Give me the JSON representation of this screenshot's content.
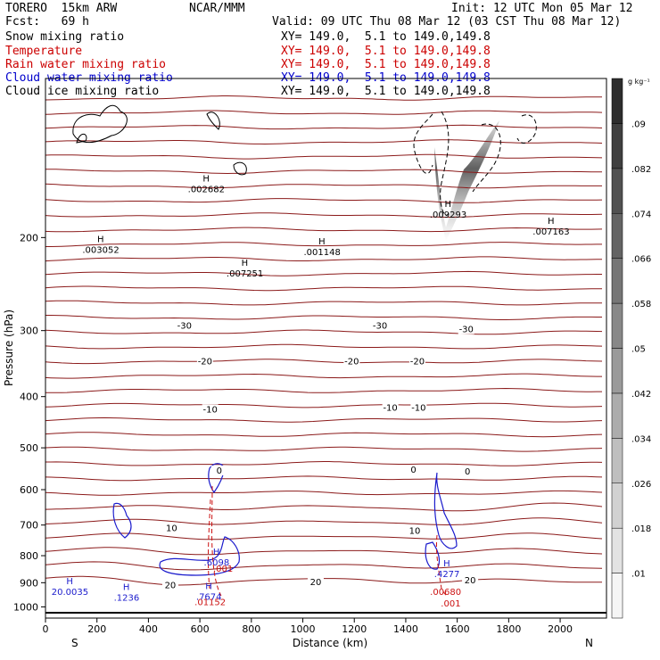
{
  "header": {
    "model": "TORERO  15km ARW",
    "center": "NCAR/MMM",
    "init": "Init: 12 UTC Mon 05 Mar 12",
    "fcst": "Fcst:   69 h",
    "valid": "Valid: 09 UTC Thu 08 Mar 12 (03 CST Thu 08 Mar 12)",
    "fields": [
      {
        "name": "Snow mixing ratio",
        "xy": "",
        "color": "#000000"
      },
      {
        "name": "Temperature",
        "xy": "XY= 149.0,  5.1 to 149.0,149.8",
        "color": "#cc0000"
      },
      {
        "name": "Rain water mixing ratio",
        "xy": "XY= 149.0,  5.1 to 149.0,149.8",
        "color": "#cc0000"
      },
      {
        "name": "Cloud water mixing ratio",
        "xy": "XY= 149.0,  5.1 to 149.0,149.8",
        "color": "#0000cc"
      },
      {
        "name": "Cloud ice mixing ratio",
        "xy": "XY= 149.0,  5.1 to 149.0,149.8",
        "color": "#000000"
      }
    ],
    "xy_snow": "XY= 149.0,  5.1 to 149.0,149.8"
  },
  "chart_data": {
    "type": "contour",
    "xlabel": "Distance (km)",
    "ylabel": "Pressure (hPa)",
    "x_ticks": [
      0,
      200,
      400,
      600,
      800,
      1000,
      1200,
      1400,
      1600,
      1800,
      2000
    ],
    "y_ticks": [
      200,
      300,
      400,
      500,
      600,
      700,
      800,
      900,
      1000
    ],
    "xlim": [
      0,
      2180
    ],
    "ylim": [
      1050,
      100
    ],
    "y_scale": "log",
    "endpoints": {
      "left": "S",
      "right": "N"
    },
    "colorbar": {
      "unit": "g kg⁻¹",
      "levels": [
        ".01",
        ".018",
        ".026",
        ".034",
        ".042",
        ".05",
        ".058",
        ".066",
        ".074",
        ".082",
        ".09"
      ]
    },
    "temperature_labels": [
      {
        "text": "-30",
        "x": 540,
        "p": 295
      },
      {
        "text": "-30",
        "x": 1300,
        "p": 295
      },
      {
        "text": "-30",
        "x": 1635,
        "p": 300
      },
      {
        "text": "-20",
        "x": 620,
        "p": 345
      },
      {
        "text": "-20",
        "x": 1190,
        "p": 345
      },
      {
        "text": "-20",
        "x": 1445,
        "p": 345
      },
      {
        "text": "-10",
        "x": 640,
        "p": 425
      },
      {
        "text": "-10",
        "x": 1340,
        "p": 422
      },
      {
        "text": "-10",
        "x": 1450,
        "p": 422
      },
      {
        "text": "0",
        "x": 675,
        "p": 555
      },
      {
        "text": "0",
        "x": 1430,
        "p": 553
      },
      {
        "text": "0",
        "x": 1640,
        "p": 557
      },
      {
        "text": "10",
        "x": 490,
        "p": 713
      },
      {
        "text": "10",
        "x": 1435,
        "p": 721
      },
      {
        "text": "20",
        "x": 1050,
        "p": 902
      },
      {
        "text": "20",
        "x": 485,
        "p": 915
      },
      {
        "text": "20",
        "x": 1650,
        "p": 895
      }
    ],
    "snow_maxima": [
      {
        "text": ".003052",
        "x": 215,
        "p": 212
      },
      {
        "text": ".002682",
        "x": 625,
        "p": 163
      },
      {
        "text": ".007251",
        "x": 775,
        "p": 235
      },
      {
        "text": ".001148",
        "x": 1075,
        "p": 214
      },
      {
        "text": ".009293",
        "x": 1565,
        "p": 182
      },
      {
        "text": ".007163",
        "x": 1965,
        "p": 196
      }
    ],
    "cloud_water_maxima": [
      {
        "text": ".1236",
        "x": 315,
        "p": 965
      },
      {
        "text": ".7674",
        "x": 635,
        "p": 963
      },
      {
        "text": ".6098",
        "x": 665,
        "p": 828
      },
      {
        "text": ".4277",
        "x": 1560,
        "p": 872
      },
      {
        "text": "20.0035",
        "x": 95,
        "p": 942
      }
    ],
    "rain_maxima": [
      {
        "text": ".01152",
        "x": 640,
        "p": 985
      },
      {
        "text": ".001",
        "x": 690,
        "p": 852
      },
      {
        "text": ".00680",
        "x": 1555,
        "p": 942
      },
      {
        "text": ".001",
        "x": 1575,
        "p": 990
      }
    ]
  }
}
